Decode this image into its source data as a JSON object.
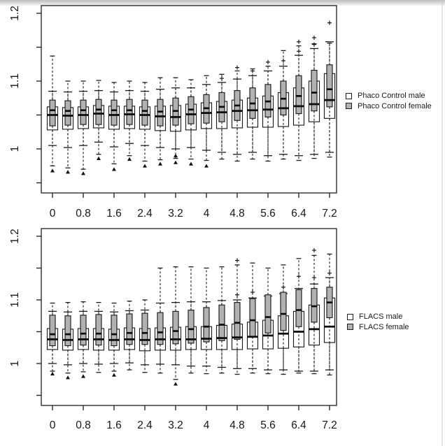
{
  "colors": {
    "male_fill": "#ffffff",
    "female_fill": "#b2b2b2",
    "stroke": "#1c1c1c",
    "text": "#161616",
    "background": "#ffffff",
    "top_band": "#bdbdbd"
  },
  "legends": {
    "top": {
      "items": [
        {
          "label": "Phaco Control male",
          "fill": "#ffffff"
        },
        {
          "label": "Phaco Control female",
          "fill": "#b2b2b2"
        }
      ]
    },
    "bottom": {
      "items": [
        {
          "label": "FLACS male",
          "fill": "#ffffff"
        },
        {
          "label": "FLACS female",
          "fill": "#b2b2b2"
        }
      ]
    }
  },
  "chart_data": [
    {
      "type": "boxplot",
      "panel": "top",
      "title": "",
      "xlabel": "",
      "ylabel": "",
      "legend_position": "right",
      "grid": false,
      "x": [
        0,
        0.4,
        0.8,
        1.2,
        1.6,
        2,
        2.4,
        2.8,
        3.2,
        3.6,
        4,
        4.4,
        4.8,
        5.2,
        5.6,
        6,
        6.4,
        6.8,
        7.2
      ],
      "x_tick_values": [
        0,
        0.8,
        1.6,
        2.4,
        3.2,
        4,
        4.8,
        5.6,
        6.4,
        7.2
      ],
      "x_tick_labels": [
        "0",
        "0.8",
        "1.6",
        "2.4",
        "3.2",
        "4",
        "4.8",
        "5.6",
        "6.4",
        "7.2"
      ],
      "y_tick_values": [
        0.95,
        1,
        1.05,
        1.1,
        1.15,
        1.2
      ],
      "y_tick_labels": [
        {
          "v": 1,
          "t": "1"
        },
        {
          "v": 1.1,
          "t": "1.1"
        },
        {
          "v": 1.2,
          "t": "1.2"
        }
      ],
      "ylim": [
        0.934,
        1.211
      ],
      "xlim": [
        -0.3,
        7.5
      ],
      "series": [
        {
          "name": "Phaco Control male",
          "sex": "male",
          "fill": "#ffffff",
          "stats": [
            {
              "m": 1.05,
              "q1": 1.028,
              "q3": 1.062,
              "lo": 1.005,
              "hi": 1.085,
              "out": []
            },
            {
              "m": 1.049,
              "q1": 1.029,
              "q3": 1.061,
              "lo": 1.002,
              "hi": 1.084,
              "out": []
            },
            {
              "m": 1.05,
              "q1": 1.03,
              "q3": 1.062,
              "lo": 1.005,
              "hi": 1.085,
              "out": []
            },
            {
              "m": 1.052,
              "q1": 1.031,
              "q3": 1.064,
              "lo": 1.01,
              "hi": 1.086,
              "out": []
            },
            {
              "m": 1.05,
              "q1": 1.029,
              "q3": 1.063,
              "lo": 1.003,
              "hi": 1.084,
              "out": []
            },
            {
              "m": 1.051,
              "q1": 1.03,
              "q3": 1.063,
              "lo": 1.008,
              "hi": 1.086,
              "out": []
            },
            {
              "m": 1.05,
              "q1": 1.029,
              "q3": 1.062,
              "lo": 1.005,
              "hi": 1.085,
              "out": []
            },
            {
              "m": 1.048,
              "q1": 1.027,
              "q3": 1.063,
              "lo": 1.002,
              "hi": 1.088,
              "out": []
            },
            {
              "m": 1.047,
              "q1": 1.026,
              "q3": 1.064,
              "lo": 1.0,
              "hi": 1.09,
              "out": [
                0.99
              ]
            },
            {
              "m": 1.051,
              "q1": 1.028,
              "q3": 1.066,
              "lo": 1.002,
              "hi": 1.09,
              "out": []
            },
            {
              "m": 1.053,
              "q1": 1.03,
              "q3": 1.068,
              "lo": 0.998,
              "hi": 1.095,
              "out": []
            },
            {
              "m": 1.054,
              "q1": 1.03,
              "q3": 1.07,
              "lo": 0.995,
              "hi": 1.098,
              "out": [
                1.104
              ]
            },
            {
              "m": 1.056,
              "q1": 1.031,
              "q3": 1.072,
              "lo": 0.992,
              "hi": 1.103,
              "out": []
            },
            {
              "m": 1.057,
              "q1": 1.032,
              "q3": 1.075,
              "lo": 0.995,
              "hi": 1.108,
              "out": [
                1.115
              ]
            },
            {
              "m": 1.058,
              "q1": 1.032,
              "q3": 1.078,
              "lo": 0.99,
              "hi": 1.115,
              "out": []
            },
            {
              "m": 1.06,
              "q1": 1.033,
              "q3": 1.083,
              "lo": 0.992,
              "hi": 1.122,
              "out": [
                1.13
              ]
            },
            {
              "m": 1.063,
              "q1": 1.035,
              "q3": 1.09,
              "lo": 0.99,
              "hi": 1.138,
              "out": [
                1.144
              ]
            },
            {
              "m": 1.066,
              "q1": 1.04,
              "q3": 1.1,
              "lo": 0.992,
              "hi": 1.148,
              "out": [
                1.154
              ]
            },
            {
              "m": 1.072,
              "q1": 1.045,
              "q3": 1.111,
              "lo": 0.995,
              "hi": 1.158,
              "out": []
            }
          ]
        },
        {
          "name": "Phaco Control female",
          "sex": "female",
          "fill": "#b2b2b2",
          "stats": [
            {
              "m": 1.057,
              "q1": 1.034,
              "q3": 1.072,
              "lo": 0.975,
              "hi": 1.137,
              "out": [
                0.968
              ]
            },
            {
              "m": 1.056,
              "q1": 1.035,
              "q3": 1.071,
              "lo": 0.972,
              "hi": 1.1,
              "out": [
                0.966
              ]
            },
            {
              "m": 1.057,
              "q1": 1.036,
              "q3": 1.072,
              "lo": 0.97,
              "hi": 1.1,
              "out": [
                0.964
              ]
            },
            {
              "m": 1.058,
              "q1": 1.036,
              "q3": 1.073,
              "lo": 0.992,
              "hi": 1.101,
              "out": [
                0.986
              ]
            },
            {
              "m": 1.057,
              "q1": 1.035,
              "q3": 1.072,
              "lo": 0.978,
              "hi": 1.098,
              "out": [
                0.97
              ]
            },
            {
              "m": 1.057,
              "q1": 1.036,
              "q3": 1.073,
              "lo": 0.99,
              "hi": 1.1,
              "out": [
                0.985
              ]
            },
            {
              "m": 1.056,
              "q1": 1.035,
              "q3": 1.072,
              "lo": 0.982,
              "hi": 1.098,
              "out": [
                0.975
              ]
            },
            {
              "m": 1.055,
              "q1": 1.034,
              "q3": 1.073,
              "lo": 0.984,
              "hi": 1.105,
              "out": [
                0.978
              ]
            },
            {
              "m": 1.056,
              "q1": 1.035,
              "q3": 1.075,
              "lo": 0.986,
              "hi": 1.105,
              "out": [
                0.98
              ]
            },
            {
              "m": 1.058,
              "q1": 1.037,
              "q3": 1.077,
              "lo": 0.985,
              "hi": 1.102,
              "out": [
                0.978
              ]
            },
            {
              "m": 1.06,
              "q1": 1.038,
              "q3": 1.08,
              "lo": 0.983,
              "hi": 1.108,
              "out": [
                0.975
              ]
            },
            {
              "m": 1.062,
              "q1": 1.04,
              "q3": 1.083,
              "lo": 0.985,
              "hi": 1.11,
              "out": []
            },
            {
              "m": 1.064,
              "q1": 1.042,
              "q3": 1.086,
              "lo": 0.982,
              "hi": 1.115,
              "out": [
                1.12
              ]
            },
            {
              "m": 1.067,
              "q1": 1.045,
              "q3": 1.09,
              "lo": 0.985,
              "hi": 1.118,
              "out": []
            },
            {
              "m": 1.07,
              "q1": 1.047,
              "q3": 1.095,
              "lo": 0.982,
              "hi": 1.122,
              "out": [
                1.128
              ]
            },
            {
              "m": 1.074,
              "q1": 1.05,
              "q3": 1.1,
              "lo": 0.985,
              "hi": 1.145,
              "out": []
            },
            {
              "m": 1.078,
              "q1": 1.052,
              "q3": 1.108,
              "lo": 0.983,
              "hi": 1.152,
              "out": [
                1.158
              ]
            },
            {
              "m": 1.083,
              "q1": 1.056,
              "q3": 1.116,
              "lo": 0.986,
              "hi": 1.155,
              "out": [
                1.164
              ]
            },
            {
              "m": 1.088,
              "q1": 1.062,
              "q3": 1.124,
              "lo": 0.988,
              "hi": 1.156,
              "out": [
                1.186
              ]
            }
          ]
        }
      ]
    },
    {
      "type": "boxplot",
      "panel": "bottom",
      "title": "",
      "xlabel": "",
      "ylabel": "",
      "legend_position": "right",
      "grid": false,
      "x": [
        0,
        0.4,
        0.8,
        1.2,
        1.6,
        2,
        2.4,
        2.8,
        3.2,
        3.6,
        4,
        4.4,
        4.8,
        5.2,
        5.6,
        6,
        6.4,
        6.8,
        7.2
      ],
      "x_tick_values": [
        0,
        0.8,
        1.6,
        2.4,
        3.2,
        4,
        4.8,
        5.6,
        6.4,
        7.2
      ],
      "x_tick_labels": [
        "0",
        "0.8",
        "1.6",
        "2.4",
        "3.2",
        "4",
        "4.8",
        "5.6",
        "6.4",
        "7.2"
      ],
      "y_tick_values": [
        0.95,
        1,
        1.05,
        1.1,
        1.15,
        1.2
      ],
      "y_tick_labels": [
        {
          "v": 1,
          "t": "1"
        },
        {
          "v": 1.1,
          "t": "1.1"
        },
        {
          "v": 1.2,
          "t": "1.2"
        }
      ],
      "ylim": [
        0.934,
        1.212
      ],
      "xlim": [
        -0.3,
        7.5
      ],
      "series": [
        {
          "name": "FLACS male",
          "sex": "male",
          "fill": "#ffffff",
          "stats": [
            {
              "m": 1.038,
              "q1": 1.022,
              "q3": 1.055,
              "lo": 1.0,
              "hi": 1.082,
              "out": [
                0.984
              ]
            },
            {
              "m": 1.037,
              "q1": 1.021,
              "q3": 1.054,
              "lo": 0.998,
              "hi": 1.081,
              "out": [
                0.978
              ]
            },
            {
              "m": 1.038,
              "q1": 1.022,
              "q3": 1.055,
              "lo": 1.0,
              "hi": 1.082,
              "out": [
                0.98
              ]
            },
            {
              "m": 1.038,
              "q1": 1.021,
              "q3": 1.055,
              "lo": 0.999,
              "hi": 1.082,
              "out": []
            },
            {
              "m": 1.037,
              "q1": 1.021,
              "q3": 1.054,
              "lo": 1.0,
              "hi": 1.081,
              "out": [
                0.982
              ]
            },
            {
              "m": 1.038,
              "q1": 1.022,
              "q3": 1.056,
              "lo": 1.001,
              "hi": 1.083,
              "out": []
            },
            {
              "m": 1.037,
              "q1": 1.02,
              "q3": 1.055,
              "lo": 0.998,
              "hi": 1.084,
              "out": []
            },
            {
              "m": 1.038,
              "q1": 1.021,
              "q3": 1.056,
              "lo": 0.999,
              "hi": 1.095,
              "out": []
            },
            {
              "m": 1.038,
              "q1": 1.021,
              "q3": 1.057,
              "lo": 0.998,
              "hi": 1.096,
              "out": []
            },
            {
              "m": 1.038,
              "q1": 1.022,
              "q3": 1.058,
              "lo": 0.996,
              "hi": 1.097,
              "out": []
            },
            {
              "m": 1.039,
              "q1": 1.022,
              "q3": 1.058,
              "lo": 0.996,
              "hi": 1.097,
              "out": []
            },
            {
              "m": 1.04,
              "q1": 1.022,
              "q3": 1.06,
              "lo": 0.994,
              "hi": 1.099,
              "out": []
            },
            {
              "m": 1.041,
              "q1": 1.022,
              "q3": 1.062,
              "lo": 0.992,
              "hi": 1.1,
              "out": [
                1.108
              ]
            },
            {
              "m": 1.042,
              "q1": 1.023,
              "q3": 1.065,
              "lo": 0.992,
              "hi": 1.103,
              "out": [
                1.112
              ]
            },
            {
              "m": 1.044,
              "q1": 1.023,
              "q3": 1.068,
              "lo": 0.99,
              "hi": 1.106,
              "out": []
            },
            {
              "m": 1.047,
              "q1": 1.024,
              "q3": 1.075,
              "lo": 0.99,
              "hi": 1.11,
              "out": [
                1.12
              ]
            },
            {
              "m": 1.05,
              "q1": 1.026,
              "q3": 1.082,
              "lo": 0.988,
              "hi": 1.118,
              "out": [
                1.137
              ]
            },
            {
              "m": 1.054,
              "q1": 1.029,
              "q3": 1.092,
              "lo": 0.988,
              "hi": 1.125,
              "out": [
                1.135
              ]
            },
            {
              "m": 1.058,
              "q1": 1.033,
              "q3": 1.103,
              "lo": 0.99,
              "hi": 1.135,
              "out": [
                1.142
              ]
            }
          ]
        },
        {
          "name": "FLACS female",
          "sex": "female",
          "fill": "#b2b2b2",
          "stats": [
            {
              "m": 1.046,
              "q1": 1.028,
              "q3": 1.076,
              "lo": 0.988,
              "hi": 1.095,
              "out": []
            },
            {
              "m": 1.046,
              "q1": 1.028,
              "q3": 1.075,
              "lo": 0.985,
              "hi": 1.096,
              "out": []
            },
            {
              "m": 1.047,
              "q1": 1.029,
              "q3": 1.076,
              "lo": 0.987,
              "hi": 1.097,
              "out": []
            },
            {
              "m": 1.047,
              "q1": 1.029,
              "q3": 1.077,
              "lo": 0.986,
              "hi": 1.096,
              "out": []
            },
            {
              "m": 1.046,
              "q1": 1.028,
              "q3": 1.076,
              "lo": 0.988,
              "hi": 1.095,
              "out": []
            },
            {
              "m": 1.048,
              "q1": 1.03,
              "q3": 1.078,
              "lo": 0.99,
              "hi": 1.098,
              "out": []
            },
            {
              "m": 1.048,
              "q1": 1.03,
              "q3": 1.079,
              "lo": 0.986,
              "hi": 1.1,
              "out": []
            },
            {
              "m": 1.049,
              "q1": 1.03,
              "q3": 1.08,
              "lo": 0.985,
              "hi": 1.15,
              "out": []
            },
            {
              "m": 1.051,
              "q1": 1.031,
              "q3": 1.082,
              "lo": 0.975,
              "hi": 1.152,
              "out": [
                0.968
              ]
            },
            {
              "m": 1.054,
              "q1": 1.032,
              "q3": 1.084,
              "lo": 0.985,
              "hi": 1.152,
              "out": []
            },
            {
              "m": 1.058,
              "q1": 1.034,
              "q3": 1.088,
              "lo": 0.984,
              "hi": 1.15,
              "out": []
            },
            {
              "m": 1.061,
              "q1": 1.036,
              "q3": 1.092,
              "lo": 0.985,
              "hi": 1.152,
              "out": []
            },
            {
              "m": 1.064,
              "q1": 1.038,
              "q3": 1.096,
              "lo": 0.983,
              "hi": 1.155,
              "out": [
                1.162
              ]
            },
            {
              "m": 1.068,
              "q1": 1.042,
              "q3": 1.102,
              "lo": 0.985,
              "hi": 1.158,
              "out": []
            },
            {
              "m": 1.073,
              "q1": 1.048,
              "q3": 1.108,
              "lo": 0.984,
              "hi": 1.15,
              "out": []
            },
            {
              "m": 1.078,
              "q1": 1.052,
              "q3": 1.112,
              "lo": 0.983,
              "hi": 1.155,
              "out": []
            },
            {
              "m": 1.084,
              "q1": 1.058,
              "q3": 1.116,
              "lo": 0.985,
              "hi": 1.165,
              "out": []
            },
            {
              "m": 1.09,
              "q1": 1.065,
              "q3": 1.118,
              "lo": 0.984,
              "hi": 1.17,
              "out": [
                1.178
              ]
            },
            {
              "m": 1.096,
              "q1": 1.072,
              "q3": 1.12,
              "lo": 0.982,
              "hi": 1.172,
              "out": []
            }
          ]
        }
      ]
    }
  ]
}
